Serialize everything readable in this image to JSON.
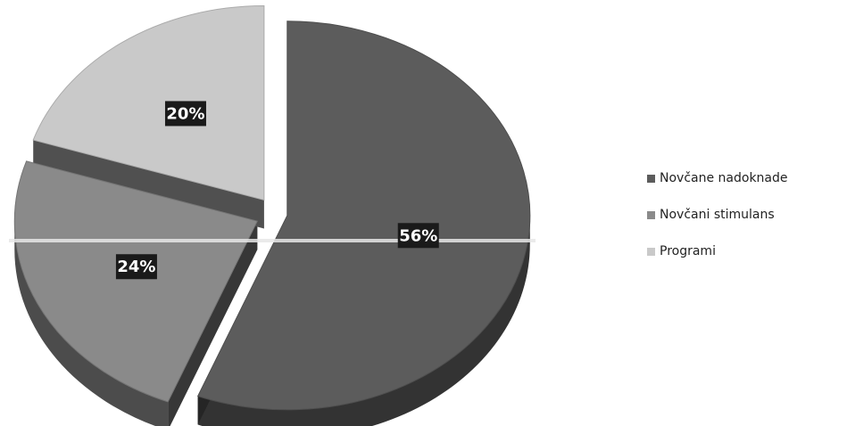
{
  "chart_data": {
    "type": "pie",
    "categories": [
      "Novčane nadoknade",
      "Novčani stimulans",
      "Programi"
    ],
    "values": [
      56,
      24,
      20
    ],
    "data_labels": [
      "56%",
      "24%",
      "20%"
    ],
    "legend_position": "right",
    "colors": [
      "#5c5c5c",
      "#8a8a8a",
      "#c9c9c9"
    ]
  }
}
